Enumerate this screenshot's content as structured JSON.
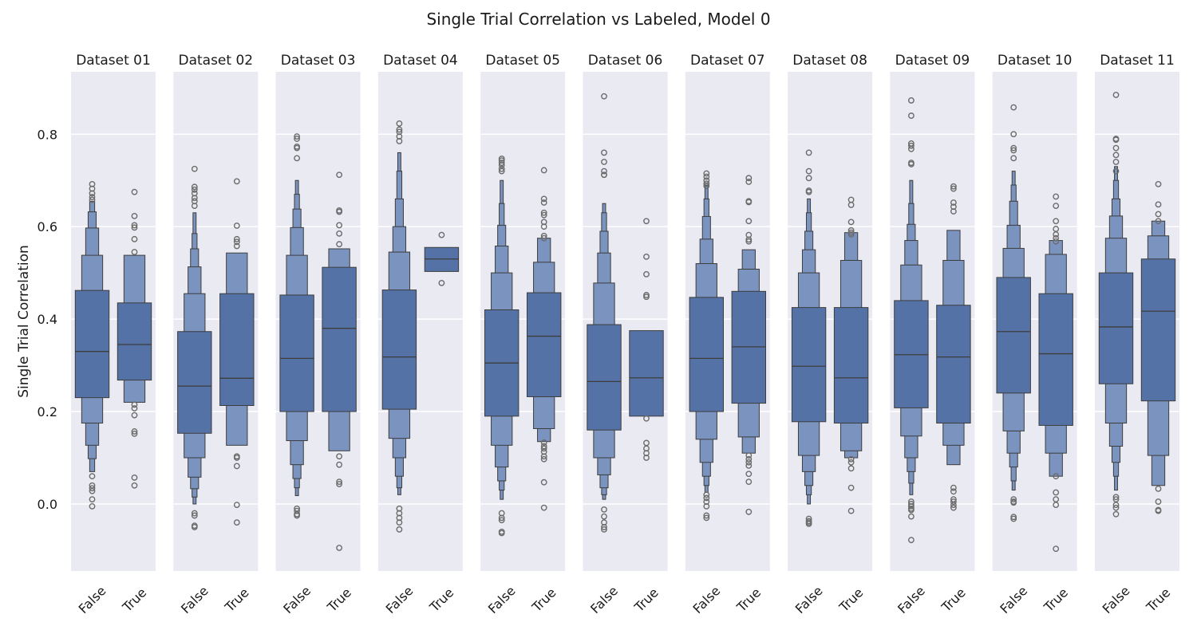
{
  "chart_data": {
    "type": "boxen",
    "title": "Single Trial Correlation vs Labeled, Model 0",
    "ylabel": "Single Trial Correlation",
    "ylim": [
      -0.145,
      0.935
    ],
    "yticks": [
      0.0,
      0.2,
      0.4,
      0.6,
      0.8
    ],
    "ytick_labels": [
      "0.0",
      "0.2",
      "0.4",
      "0.6",
      "0.8"
    ],
    "categories": [
      "False",
      "True"
    ],
    "grid": true,
    "colors": {
      "box": "#5572a6",
      "box_light": "#7a93bf",
      "edge": "#3d3d3d",
      "panel_bg": "#eaeaf2",
      "grid": "#ffffff"
    },
    "panels": [
      {
        "title": "Dataset 01",
        "groups": [
          {
            "label": "False",
            "median": 0.33,
            "q": [
              [
                0.23,
                0.462
              ],
              [
                0.175,
                0.538
              ],
              [
                0.127,
                0.597
              ],
              [
                0.098,
                0.632
              ],
              [
                0.07,
                0.655
              ]
            ],
            "outliers": [
              0.692,
              0.682,
              0.672,
              0.664,
              0.658,
              0.06,
              0.04,
              0.034,
              0.028,
              0.01,
              -0.005
            ]
          },
          {
            "label": "True",
            "median": 0.345,
            "q": [
              [
                0.268,
                0.435
              ],
              [
                0.22,
                0.538
              ]
            ],
            "outliers": [
              0.675,
              0.623,
              0.603,
              0.598,
              0.573,
              0.545,
              0.215,
              0.207,
              0.192,
              0.157,
              0.152,
              0.057,
              0.04
            ]
          }
        ]
      },
      {
        "title": "Dataset 02",
        "groups": [
          {
            "label": "False",
            "median": 0.255,
            "q": [
              [
                0.153,
                0.373
              ],
              [
                0.1,
                0.455
              ],
              [
                0.058,
                0.513
              ],
              [
                0.033,
                0.552
              ],
              [
                0.015,
                0.585
              ],
              [
                0.0,
                0.63
              ]
            ],
            "outliers": [
              0.725,
              0.686,
              0.68,
              0.672,
              0.662,
              0.655,
              0.645,
              -0.02,
              -0.025,
              -0.047,
              -0.05
            ]
          },
          {
            "label": "True",
            "median": 0.272,
            "q": [
              [
                0.213,
                0.455
              ],
              [
                0.127,
                0.543
              ]
            ],
            "outliers": [
              0.698,
              0.602,
              0.573,
              0.567,
              0.558,
              0.103,
              0.1,
              0.082,
              -0.002,
              -0.04
            ]
          }
        ]
      },
      {
        "title": "Dataset 03",
        "groups": [
          {
            "label": "False",
            "median": 0.315,
            "q": [
              [
                0.2,
                0.452
              ],
              [
                0.137,
                0.538
              ],
              [
                0.085,
                0.598
              ],
              [
                0.055,
                0.638
              ],
              [
                0.035,
                0.67
              ],
              [
                0.018,
                0.7
              ]
            ],
            "outliers": [
              0.795,
              0.79,
              0.773,
              0.77,
              0.748,
              -0.01,
              -0.015,
              -0.022,
              -0.025
            ]
          },
          {
            "label": "True",
            "median": 0.38,
            "q": [
              [
                0.2,
                0.512
              ],
              [
                0.115,
                0.552
              ]
            ],
            "outliers": [
              0.712,
              0.635,
              0.632,
              0.603,
              0.585,
              0.562,
              0.103,
              0.085,
              0.048,
              0.043,
              -0.095
            ]
          }
        ]
      },
      {
        "title": "Dataset 04",
        "groups": [
          {
            "label": "False",
            "median": 0.318,
            "q": [
              [
                0.205,
                0.463
              ],
              [
                0.142,
                0.545
              ],
              [
                0.1,
                0.6
              ],
              [
                0.06,
                0.66
              ],
              [
                0.035,
                0.72
              ],
              [
                0.02,
                0.76
              ]
            ],
            "outliers": [
              0.823,
              0.81,
              0.805,
              0.795,
              0.785,
              -0.01,
              -0.02,
              -0.03,
              -0.04,
              -0.055
            ]
          },
          {
            "label": "True",
            "median": 0.53,
            "q": [
              [
                0.503,
                0.555
              ]
            ],
            "outliers": [
              0.582,
              0.478
            ]
          }
        ]
      },
      {
        "title": "Dataset 05",
        "groups": [
          {
            "label": "False",
            "median": 0.305,
            "q": [
              [
                0.19,
                0.42
              ],
              [
                0.127,
                0.5
              ],
              [
                0.08,
                0.558
              ],
              [
                0.05,
                0.603
              ],
              [
                0.03,
                0.65
              ],
              [
                0.01,
                0.7
              ]
            ],
            "outliers": [
              0.747,
              0.743,
              0.738,
              0.733,
              0.725,
              0.72,
              -0.02,
              -0.03,
              -0.035,
              -0.06,
              -0.063
            ]
          },
          {
            "label": "True",
            "median": 0.363,
            "q": [
              [
                0.232,
                0.457
              ],
              [
                0.163,
                0.523
              ],
              [
                0.135,
                0.575
              ]
            ],
            "outliers": [
              0.722,
              0.66,
              0.652,
              0.63,
              0.625,
              0.61,
              0.6,
              0.58,
              0.575,
              0.133,
              0.125,
              0.12,
              0.113,
              0.103,
              0.097,
              0.047,
              -0.008
            ]
          }
        ]
      },
      {
        "title": "Dataset 06",
        "groups": [
          {
            "label": "False",
            "median": 0.265,
            "q": [
              [
                0.16,
                0.388
              ],
              [
                0.1,
                0.478
              ],
              [
                0.063,
                0.543
              ],
              [
                0.035,
                0.59
              ],
              [
                0.02,
                0.63
              ],
              [
                0.01,
                0.65
              ]
            ],
            "outliers": [
              0.882,
              0.76,
              0.74,
              0.72,
              0.712,
              0.712,
              -0.012,
              -0.027,
              -0.04,
              -0.05,
              -0.055
            ]
          },
          {
            "label": "True",
            "median": 0.273,
            "q": [
              [
                0.19,
                0.375
              ]
            ],
            "outliers": [
              0.612,
              0.535,
              0.497,
              0.452,
              0.448,
              0.185,
              0.132,
              0.12,
              0.11,
              0.1
            ]
          }
        ]
      },
      {
        "title": "Dataset 07",
        "groups": [
          {
            "label": "False",
            "median": 0.315,
            "q": [
              [
                0.2,
                0.447
              ],
              [
                0.14,
                0.52
              ],
              [
                0.09,
                0.573
              ],
              [
                0.06,
                0.622
              ],
              [
                0.04,
                0.66
              ],
              [
                0.025,
                0.69
              ]
            ],
            "outliers": [
              0.715,
              0.708,
              0.7,
              0.693,
              0.688,
              0.02,
              0.013,
              0.005,
              -0.005,
              -0.025,
              -0.03
            ]
          },
          {
            "label": "True",
            "median": 0.34,
            "q": [
              [
                0.218,
                0.46
              ],
              [
                0.145,
                0.508
              ],
              [
                0.11,
                0.55
              ]
            ],
            "outliers": [
              0.705,
              0.697,
              0.655,
              0.653,
              0.612,
              0.582,
              0.572,
              0.568,
              0.105,
              0.097,
              0.09,
              0.083,
              0.065,
              0.048,
              -0.017
            ]
          }
        ]
      },
      {
        "title": "Dataset 08",
        "groups": [
          {
            "label": "False",
            "median": 0.298,
            "q": [
              [
                0.178,
                0.425
              ],
              [
                0.105,
                0.5
              ],
              [
                0.07,
                0.55
              ],
              [
                0.04,
                0.59
              ],
              [
                0.02,
                0.63
              ],
              [
                0.0,
                0.66
              ]
            ],
            "outliers": [
              0.76,
              0.72,
              0.705,
              0.678,
              0.675,
              -0.032,
              -0.037,
              -0.04,
              -0.043
            ]
          },
          {
            "label": "True",
            "median": 0.273,
            "q": [
              [
                0.175,
                0.425
              ],
              [
                0.115,
                0.527
              ],
              [
                0.1,
                0.587
              ]
            ],
            "outliers": [
              0.658,
              0.647,
              0.61,
              0.592,
              0.587,
              0.583,
              0.097,
              0.09,
              0.077,
              0.035,
              -0.015
            ]
          }
        ]
      },
      {
        "title": "Dataset 09",
        "groups": [
          {
            "label": "False",
            "median": 0.323,
            "q": [
              [
                0.208,
                0.44
              ],
              [
                0.147,
                0.517
              ],
              [
                0.1,
                0.57
              ],
              [
                0.07,
                0.605
              ],
              [
                0.045,
                0.65
              ],
              [
                0.02,
                0.7
              ]
            ],
            "outliers": [
              0.873,
              0.84,
              0.78,
              0.775,
              0.768,
              0.738,
              0.735,
              0.005,
              0.0,
              -0.005,
              -0.01,
              -0.013,
              -0.027,
              -0.078
            ]
          },
          {
            "label": "True",
            "median": 0.318,
            "q": [
              [
                0.175,
                0.43
              ],
              [
                0.127,
                0.527
              ],
              [
                0.085,
                0.592
              ]
            ],
            "outliers": [
              0.687,
              0.682,
              0.652,
              0.643,
              0.633,
              0.035,
              0.027,
              0.01,
              0.005,
              -0.002,
              -0.008
            ]
          }
        ]
      },
      {
        "title": "Dataset 10",
        "groups": [
          {
            "label": "False",
            "median": 0.373,
            "q": [
              [
                0.24,
                0.49
              ],
              [
                0.158,
                0.553
              ],
              [
                0.11,
                0.603
              ],
              [
                0.08,
                0.655
              ],
              [
                0.05,
                0.69
              ],
              [
                0.03,
                0.72
              ]
            ],
            "outliers": [
              0.858,
              0.8,
              0.77,
              0.765,
              0.748,
              0.01,
              0.005,
              0.003,
              -0.028,
              -0.032
            ]
          },
          {
            "label": "True",
            "median": 0.325,
            "q": [
              [
                0.17,
                0.455
              ],
              [
                0.11,
                0.54
              ],
              [
                0.06,
                0.57
              ]
            ],
            "outliers": [
              0.665,
              0.645,
              0.612,
              0.595,
              0.583,
              0.575,
              0.568,
              0.06,
              0.025,
              0.01,
              -0.002,
              -0.097
            ]
          }
        ]
      },
      {
        "title": "Dataset 11",
        "groups": [
          {
            "label": "False",
            "median": 0.383,
            "q": [
              [
                0.26,
                0.5
              ],
              [
                0.175,
                0.575
              ],
              [
                0.125,
                0.623
              ],
              [
                0.09,
                0.66
              ],
              [
                0.06,
                0.7
              ],
              [
                0.03,
                0.73
              ]
            ],
            "outliers": [
              0.885,
              0.79,
              0.788,
              0.77,
              0.755,
              0.74,
              0.72,
              0.015,
              0.01,
              -0.002,
              -0.008,
              -0.022
            ]
          },
          {
            "label": "True",
            "median": 0.417,
            "q": [
              [
                0.223,
                0.53
              ],
              [
                0.105,
                0.58
              ],
              [
                0.04,
                0.612
              ]
            ],
            "outliers": [
              0.692,
              0.648,
              0.627,
              0.612,
              0.033,
              0.005,
              -0.013,
              -0.015
            ]
          }
        ]
      }
    ]
  }
}
